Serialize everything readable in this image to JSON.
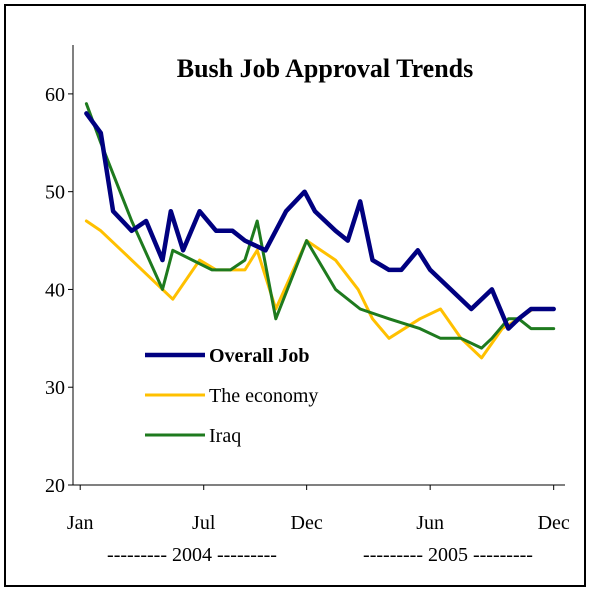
{
  "chart_data": {
    "type": "line",
    "title": "Bush Job Approval Trends",
    "xlabel": "",
    "ylabel": "",
    "ylim": [
      20,
      65
    ],
    "yticks": [
      20,
      30,
      40,
      50,
      60
    ],
    "x_tick_labels": [
      "Jan",
      "Jul",
      "Dec",
      "Jun",
      "Dec"
    ],
    "x_tick_months": [
      0,
      6,
      11,
      17,
      23
    ],
    "year_labels": [
      "--------- 2004 ---------",
      "--------- 2005 ---------"
    ],
    "legend_position": "lower-left",
    "series": [
      {
        "name": "Overall Job",
        "color": "#000080",
        "x": [
          0.3,
          1.0,
          1.6,
          2.5,
          3.2,
          4.0,
          4.4,
          5.0,
          5.8,
          6.6,
          7.4,
          8.0,
          9.0,
          10.0,
          10.9,
          11.4,
          12.4,
          13.0,
          13.6,
          14.2,
          15.0,
          15.6,
          16.4,
          17.0,
          18.0,
          19.0,
          20.0,
          20.8,
          21.3,
          21.9,
          22.4,
          23.0
        ],
        "y": [
          58,
          56,
          48,
          46,
          47,
          43,
          48,
          44,
          48,
          46,
          46,
          45,
          44,
          48,
          50,
          48,
          46,
          45,
          49,
          43,
          42,
          42,
          44,
          42,
          40,
          38,
          40,
          36,
          37,
          38,
          38,
          38
        ]
      },
      {
        "name": "The economy",
        "color": "#FFC000",
        "x": [
          0.3,
          1.0,
          2.0,
          3.0,
          4.5,
          5.8,
          6.6,
          7.3,
          8.0,
          8.6,
          9.5,
          11.0,
          12.4,
          13.5,
          14.2,
          15.0,
          16.5,
          17.5,
          18.5,
          19.5,
          20.5,
          21.3,
          22.0,
          23.0
        ],
        "y": [
          47,
          46,
          44,
          42,
          39,
          43,
          42,
          42,
          42,
          44,
          38,
          45,
          43,
          40,
          37,
          35,
          37,
          38,
          35,
          33,
          36,
          37,
          38,
          38
        ]
      },
      {
        "name": "Iraq",
        "color": "#1E7A1E",
        "x": [
          0.3,
          1.0,
          2.5,
          4.0,
          4.5,
          6.4,
          7.3,
          8.0,
          8.6,
          9.5,
          11.0,
          12.4,
          13.6,
          15.0,
          16.5,
          17.5,
          18.5,
          19.5,
          20.0,
          20.8,
          21.3,
          21.9,
          22.5,
          23.0
        ],
        "y": [
          59,
          55,
          47,
          40,
          44,
          42,
          42,
          43,
          47,
          37,
          45,
          40,
          38,
          37,
          36,
          35,
          35,
          34,
          35,
          37,
          37,
          36,
          36,
          36
        ]
      }
    ]
  }
}
